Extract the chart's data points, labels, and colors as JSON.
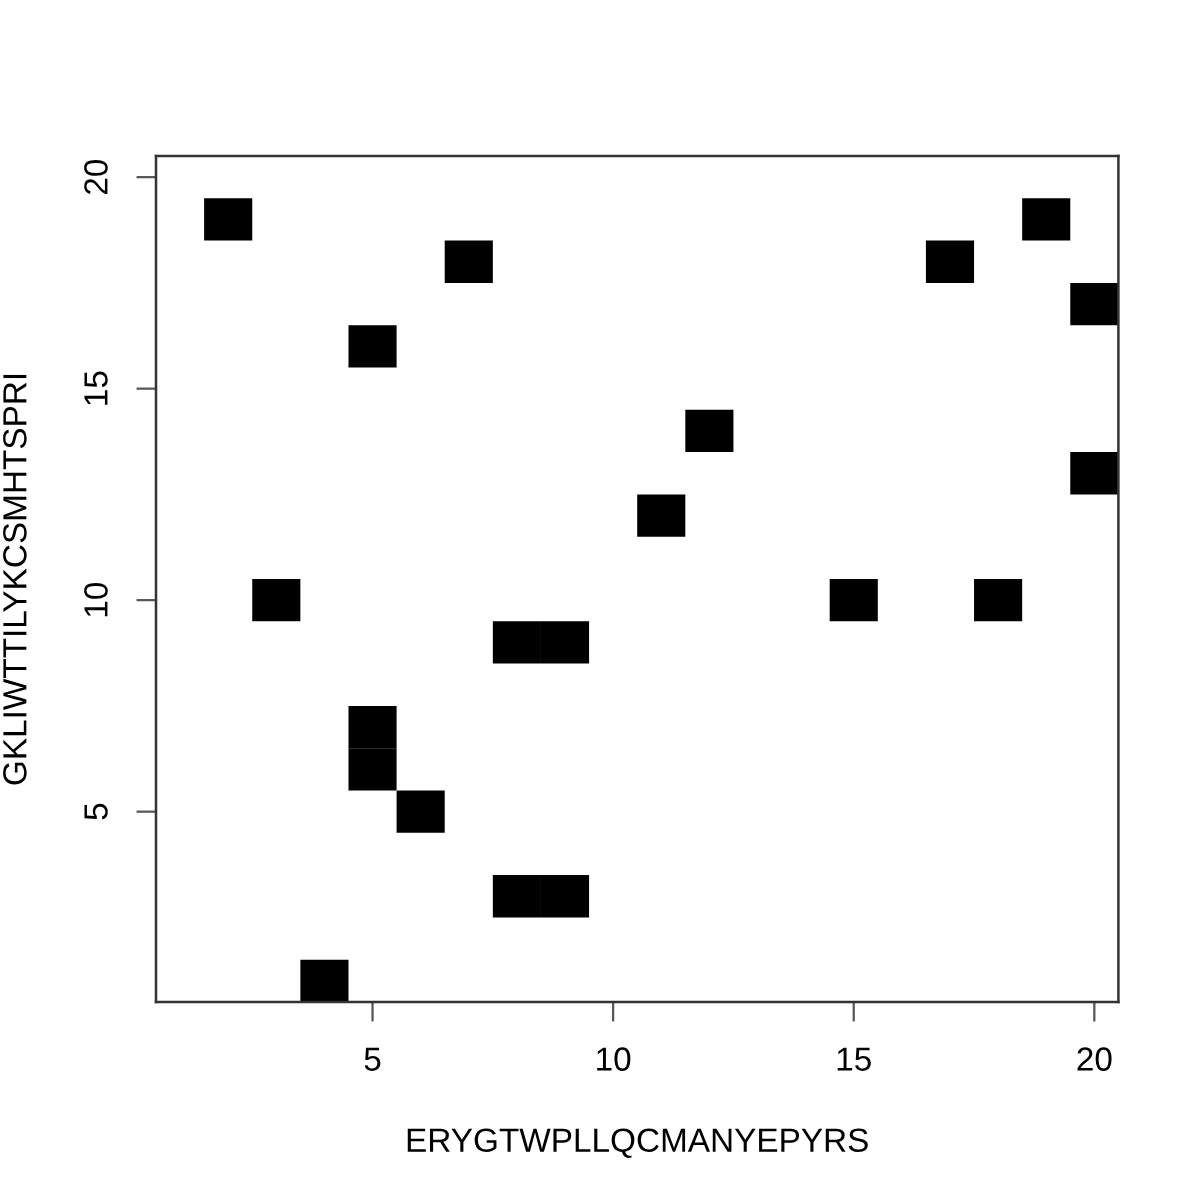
{
  "chart_data": {
    "type": "scatter",
    "xlabel": "ERYGTWPLLQCMANYEPYRS",
    "ylabel": "GKLIWTTILYKCSMHTSPRI",
    "x": [
      4,
      8,
      9,
      6,
      5,
      5,
      8,
      9,
      3,
      15,
      18,
      11,
      20,
      12,
      5,
      20,
      7,
      17,
      2,
      19
    ],
    "values": [
      1,
      3,
      3,
      5,
      6,
      7,
      9,
      9,
      10,
      10,
      10,
      12,
      13,
      14,
      16,
      17,
      18,
      18,
      19,
      19
    ],
    "color": "#000000",
    "marker": "square",
    "xlim": [
      0.5,
      20.5
    ],
    "ylim": [
      0.5,
      20.5
    ],
    "xticks": [
      5,
      10,
      15,
      20
    ],
    "yticks": [
      5,
      10,
      15,
      20
    ],
    "grid": false,
    "legend": false
  }
}
